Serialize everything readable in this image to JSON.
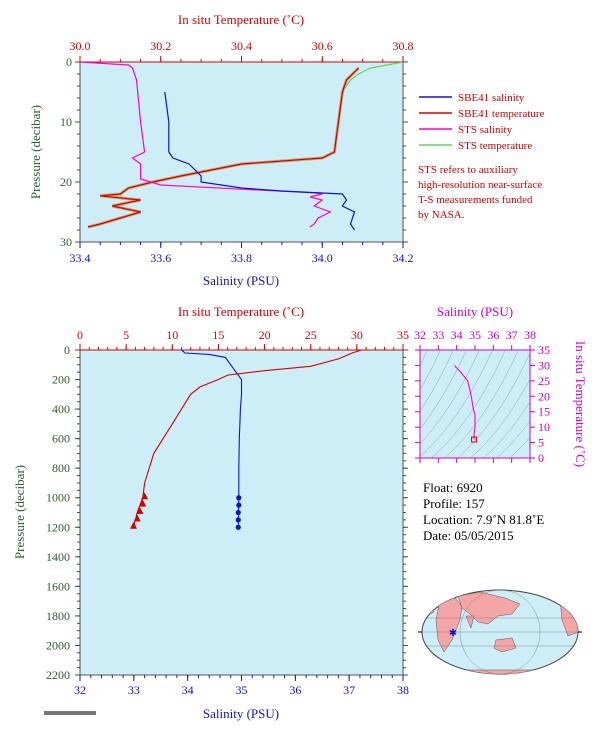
{
  "colors": {
    "panel_bg": "#cdeef7",
    "red": "#d40000",
    "blue": "#1212c8",
    "magenta": "#ff00cc",
    "green": "#5fd35f",
    "tan": "#c8a878",
    "pressure_label": "#2e5e2e"
  },
  "chart_data": [
    {
      "type": "line",
      "panel": "top",
      "x_top_label": "In situ Temperature (˚C)",
      "x_top_ticks": [
        "30.0",
        "30.2",
        "30.4",
        "30.6",
        "30.8"
      ],
      "x_top_range": [
        30.0,
        30.8
      ],
      "x_bottom_label": "Salinity (PSU)",
      "x_bottom_ticks": [
        "33.4",
        "33.6",
        "33.8",
        "34.0",
        "34.2"
      ],
      "x_bottom_range": [
        33.4,
        34.2
      ],
      "ylabel": "Pressure (decibar)",
      "y_ticks": [
        "0",
        "10",
        "20",
        "30"
      ],
      "y_range": [
        0,
        30
      ],
      "y_inverted": true,
      "legend_position": "right",
      "series": [
        {
          "name": "SBE41 salinity",
          "axis": "salinity",
          "color": "#1212c8",
          "points": [
            [
              33.61,
              5
            ],
            [
              33.62,
              10
            ],
            [
              33.62,
              15
            ],
            [
              33.63,
              16
            ],
            [
              33.67,
              17
            ],
            [
              33.7,
              19
            ],
            [
              33.7,
              20
            ],
            [
              33.8,
              21
            ],
            [
              33.9,
              21.5
            ],
            [
              34.05,
              22
            ],
            [
              34.06,
              23
            ],
            [
              34.05,
              24
            ],
            [
              34.08,
              25
            ],
            [
              34.07,
              27
            ],
            [
              34.08,
              28
            ]
          ]
        },
        {
          "name": "SBE41 temperature",
          "axis": "temperature",
          "color": "#d40000",
          "points": [
            [
              30.69,
              1
            ],
            [
              30.66,
              3
            ],
            [
              30.65,
              5
            ],
            [
              30.64,
              10
            ],
            [
              30.63,
              15
            ],
            [
              30.6,
              16
            ],
            [
              30.4,
              17
            ],
            [
              30.25,
              19
            ],
            [
              30.18,
              20
            ],
            [
              30.12,
              21
            ],
            [
              30.1,
              22
            ],
            [
              30.05,
              22.3
            ],
            [
              30.15,
              23
            ],
            [
              30.08,
              24
            ],
            [
              30.15,
              25
            ],
            [
              30.1,
              26
            ],
            [
              30.05,
              27
            ],
            [
              30.02,
              27.5
            ]
          ]
        },
        {
          "name": "STS salinity",
          "axis": "salinity",
          "color": "#ff00cc",
          "points": [
            [
              33.4,
              0
            ],
            [
              33.52,
              0.5
            ],
            [
              33.53,
              1
            ],
            [
              33.54,
              3
            ],
            [
              33.55,
              10
            ],
            [
              33.56,
              15
            ],
            [
              33.53,
              16
            ],
            [
              33.55,
              17
            ],
            [
              33.55,
              19
            ],
            [
              33.55,
              19.5
            ],
            [
              33.6,
              20.5
            ],
            [
              33.8,
              21.2
            ],
            [
              33.98,
              21.8
            ],
            [
              34.0,
              22
            ],
            [
              33.97,
              22.5
            ],
            [
              34.0,
              23
            ],
            [
              33.98,
              24
            ],
            [
              34.02,
              25
            ],
            [
              33.99,
              26
            ],
            [
              33.98,
              27
            ],
            [
              33.97,
              27.5
            ]
          ]
        },
        {
          "name": "STS temperature",
          "axis": "temperature",
          "color": "#5fd35f",
          "points": [
            [
              30.8,
              0
            ],
            [
              30.76,
              0.5
            ],
            [
              30.72,
              1
            ],
            [
              30.69,
              2
            ],
            [
              30.67,
              3
            ],
            [
              30.65,
              5
            ],
            [
              30.64,
              10
            ],
            [
              30.63,
              15
            ],
            [
              30.6,
              16
            ],
            [
              30.4,
              17
            ],
            [
              30.25,
              19
            ],
            [
              30.18,
              20
            ],
            [
              30.12,
              21
            ],
            [
              30.1,
              22
            ],
            [
              30.05,
              22.3
            ],
            [
              30.15,
              23
            ],
            [
              30.08,
              24
            ],
            [
              30.15,
              25
            ],
            [
              30.1,
              26
            ],
            [
              30.05,
              27
            ],
            [
              30.02,
              27.5
            ]
          ]
        }
      ],
      "annotation": [
        "STS refers to auxiliary",
        "high-resolution near-surface",
        "T-S measurements funded",
        "by NASA."
      ]
    },
    {
      "type": "line",
      "panel": "bottom",
      "x_top_label": "In situ Temperature (˚C)",
      "x_top_ticks": [
        "0",
        "5",
        "10",
        "15",
        "20",
        "25",
        "30",
        "35"
      ],
      "x_top_range": [
        0,
        35
      ],
      "x_bottom_label": "Salinity (PSU)",
      "x_bottom_ticks": [
        "32",
        "33",
        "34",
        "35",
        "36",
        "37",
        "38"
      ],
      "x_bottom_range": [
        32,
        38
      ],
      "ylabel": "Pressure (decibar)",
      "y_ticks": [
        "0",
        "200",
        "400",
        "600",
        "800",
        "1000",
        "1200",
        "1400",
        "1600",
        "1800",
        "2000",
        "2200"
      ],
      "y_range": [
        0,
        2200
      ],
      "y_inverted": true,
      "series": [
        {
          "axis": "salinity",
          "color": "#1212c8",
          "points": [
            [
              33.9,
              0
            ],
            [
              33.9,
              5
            ],
            [
              33.95,
              20
            ],
            [
              34.4,
              30
            ],
            [
              34.7,
              50
            ],
            [
              34.8,
              100
            ],
            [
              34.9,
              150
            ],
            [
              35.0,
              200
            ],
            [
              35.0,
              300
            ],
            [
              34.98,
              400
            ],
            [
              34.97,
              500
            ],
            [
              34.96,
              600
            ],
            [
              34.95,
              800
            ],
            [
              34.95,
              1000
            ],
            [
              34.94,
              1200
            ]
          ],
          "markers": [
            [
              34.95,
              1000
            ],
            [
              34.95,
              1050
            ],
            [
              34.94,
              1100
            ],
            [
              34.94,
              1150
            ],
            [
              34.94,
              1200
            ]
          ]
        },
        {
          "axis": "temperature",
          "color": "#d40000",
          "points": [
            [
              30.5,
              0
            ],
            [
              29.5,
              20
            ],
            [
              28,
              60
            ],
            [
              25,
              110
            ],
            [
              20,
              140
            ],
            [
              16,
              170
            ],
            [
              15,
              200
            ],
            [
              13,
              250
            ],
            [
              12,
              300
            ],
            [
              11,
              400
            ],
            [
              10,
              500
            ],
            [
              9,
              600
            ],
            [
              8,
              700
            ],
            [
              7.5,
              800
            ],
            [
              7,
              900
            ],
            [
              6.8,
              1000
            ],
            [
              6.5,
              1050
            ],
            [
              6.2,
              1100
            ],
            [
              6,
              1150
            ],
            [
              5.8,
              1200
            ]
          ],
          "markers": [
            [
              7,
              990
            ],
            [
              6.8,
              1040
            ],
            [
              6.5,
              1090
            ],
            [
              6.2,
              1140
            ],
            [
              5.8,
              1190
            ]
          ]
        }
      ]
    },
    {
      "type": "line",
      "panel": "ts-diagram",
      "x_label": "Salinity (PSU)",
      "x_ticks": [
        "32",
        "33",
        "34",
        "35",
        "36",
        "37",
        "38"
      ],
      "x_range": [
        32,
        38
      ],
      "y_label": "In situ Temperature (˚C)",
      "y_ticks": [
        "0",
        "5",
        "10",
        "15",
        "20",
        "25",
        "30",
        "35"
      ],
      "y_range": [
        0,
        35
      ],
      "series": [
        {
          "color": "#ff00cc",
          "points": [
            [
              33.9,
              30
            ],
            [
              33.95,
              29.5
            ],
            [
              34.2,
              28
            ],
            [
              34.6,
              25
            ],
            [
              34.8,
              20
            ],
            [
              34.9,
              16
            ],
            [
              35.0,
              14
            ],
            [
              35.0,
              12
            ],
            [
              35.0,
              10
            ],
            [
              34.95,
              8
            ],
            [
              34.95,
              6
            ]
          ],
          "end_marker": [
            34.95,
            6
          ]
        }
      ]
    }
  ],
  "legend": [
    {
      "label": "SBE41 salinity",
      "color": "#1212c8"
    },
    {
      "label": "SBE41 temperature",
      "color": "#d40000"
    },
    {
      "label": "STS salinity",
      "color": "#ff00cc"
    },
    {
      "label": "STS temperature",
      "color": "#5fd35f"
    }
  ],
  "info": {
    "float": "Float:  6920",
    "profile": "Profile:  157",
    "location": "Location:  7.9˚N  81.8˚E",
    "date": "Date:  05/05/2015"
  },
  "map": {
    "marker_label": "float position",
    "marker_color": "#1212c8"
  }
}
